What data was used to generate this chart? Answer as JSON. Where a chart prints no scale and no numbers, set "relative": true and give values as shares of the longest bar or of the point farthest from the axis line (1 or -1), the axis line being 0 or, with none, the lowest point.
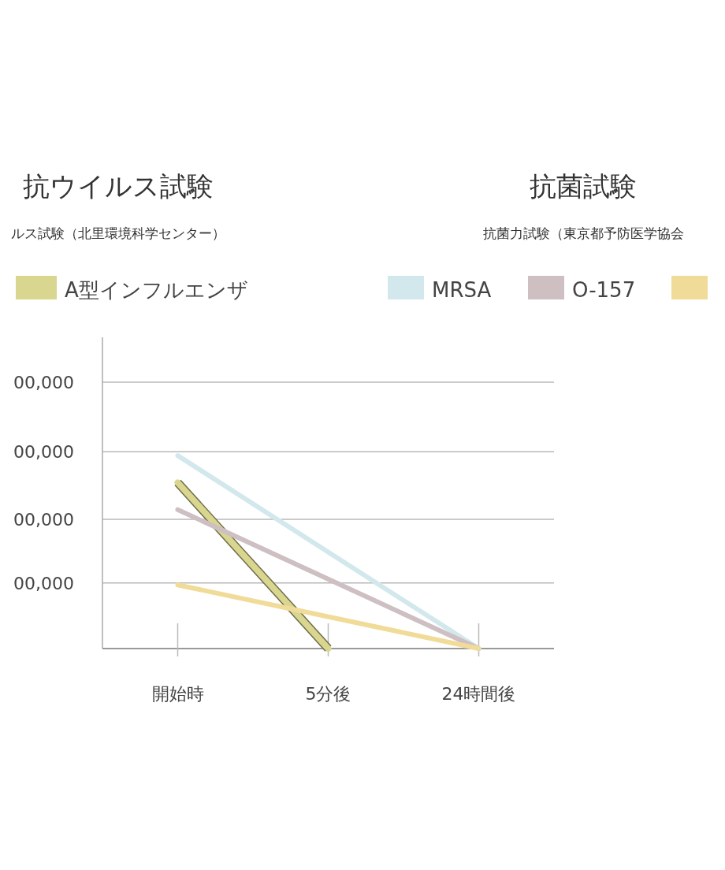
{
  "chart_data": {
    "type": "line",
    "title": "抗ウイルス試験",
    "subtitle": "ルス試験（北里環境科学センター）",
    "annotations": [
      "抗菌試験",
      "抗菌力試験（東京都予防医学協会",
      "00,000",
      "00,000",
      "00,000",
      "00,000"
    ],
    "categories": [
      "開始時",
      "5分後",
      "24時間後"
    ],
    "relative": true,
    "series": [
      {
        "name": "A型インフルエンザ",
        "color": "#d9d68f",
        "values": [
          0.86,
          0,
          null
        ]
      },
      {
        "name": "MRSA",
        "color": "#d2e8ec",
        "values": [
          1,
          null,
          0
        ]
      },
      {
        "name": "O-157",
        "color": "#cdbfc2",
        "values": [
          0.72,
          null,
          0
        ]
      },
      {
        "color": "#f0dc98",
        "values": [
          0.33,
          null,
          0
        ]
      }
    ],
    "ref_lines": [
      {
        "axis": "y",
        "value": 0.34,
        "color": "#b8b8b8"
      },
      {
        "axis": "y",
        "value": 0.67,
        "color": "#b8b8b8"
      },
      {
        "axis": "y",
        "value": 1.02,
        "color": "#b8b8b8"
      },
      {
        "axis": "y",
        "value": 1.38,
        "color": "#b8b8b8"
      }
    ],
    "legend": "top",
    "marker": "none",
    "line_style": "solid"
  }
}
